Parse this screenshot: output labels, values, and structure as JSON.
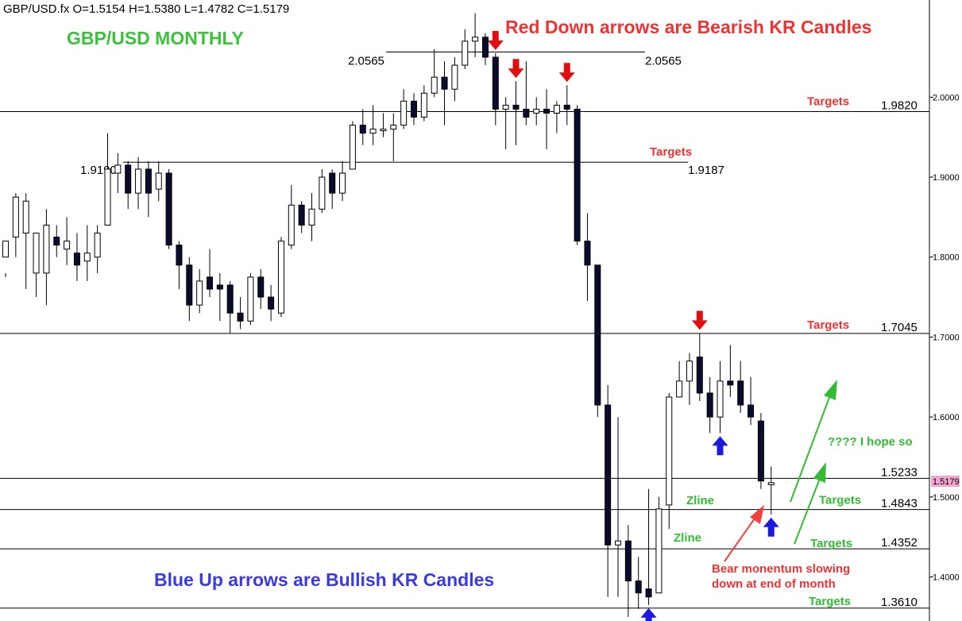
{
  "chart_data": {
    "type": "candlestick",
    "symbol_header": "GBP/USD.fx O=1.5154 H=1.5380 L=1.4782 C=1.5179",
    "title": "GBP/USD MONTHLY",
    "annotations": {
      "bearish_note": "Red Down arrows are Bearish KR Candles",
      "bullish_note": "Blue Up arrows are Bullish KR Candles",
      "hope_note": "???? I hope so",
      "momentum_line1": "Bear monentum slowing",
      "momentum_line2": "down at end of month",
      "zline_label": "Zline",
      "targets_label": "Targets"
    },
    "y_axis": {
      "range": [
        1.3449,
        2.1215
      ],
      "ticks": [
        "2.0000",
        "1.9000",
        "1.8000",
        "1.7000",
        "1.6000",
        "1.5000",
        "1.4000"
      ],
      "tick_values": [
        2.0,
        1.9,
        1.8,
        1.7,
        1.6,
        1.5,
        1.4
      ]
    },
    "current_price": "1.5179",
    "levels": [
      {
        "value": 1.982,
        "label": "1.9820",
        "note": "Targets",
        "note_color": "#ee3333"
      },
      {
        "value": 1.9187,
        "label": "1.9187",
        "note": "Targets",
        "note_color": "#ee3333"
      },
      {
        "value": 1.919,
        "label": "1.9190",
        "note": "",
        "note_color": ""
      },
      {
        "value": 2.0565,
        "label": "2.0565",
        "note": "",
        "note_color": ""
      },
      {
        "value": 1.7045,
        "label": "1.7045",
        "note": "Targets",
        "note_color": "#ee3333"
      },
      {
        "value": 1.5233,
        "label": "1.5233",
        "note": "",
        "note_color": ""
      },
      {
        "value": 1.4843,
        "label": "1.4843",
        "note": "Targets",
        "note_color": "#33bb33"
      },
      {
        "value": 1.4352,
        "label": "1.4352",
        "note": "Targets",
        "note_color": "#33bb33"
      },
      {
        "value": 1.361,
        "label": "1.3610",
        "note": "Targets",
        "note_color": "#33bb33"
      }
    ],
    "candles": [
      [
        1.8,
        1.82,
        1.78,
        1.775
      ],
      [
        1.825,
        1.875,
        1.88,
        1.8
      ],
      [
        1.83,
        1.87,
        1.88,
        1.76
      ],
      [
        1.78,
        1.83,
        1.83,
        1.75
      ],
      [
        1.78,
        1.84,
        1.86,
        1.74
      ],
      [
        1.825,
        1.815,
        1.84,
        1.8
      ],
      [
        1.81,
        1.82,
        1.85,
        1.79
      ],
      [
        1.805,
        1.79,
        1.83,
        1.77
      ],
      [
        1.795,
        1.805,
        1.84,
        1.77
      ],
      [
        1.8,
        1.83,
        1.84,
        1.78
      ],
      [
        1.84,
        1.91,
        1.955,
        1.84
      ],
      [
        1.905,
        1.915,
        1.93,
        1.88
      ],
      [
        1.915,
        1.88,
        1.92,
        1.86
      ],
      [
        1.88,
        1.91,
        1.925,
        1.86
      ],
      [
        1.91,
        1.88,
        1.92,
        1.85
      ],
      [
        1.885,
        1.905,
        1.92,
        1.87
      ],
      [
        1.905,
        1.815,
        1.91,
        1.81
      ],
      [
        1.815,
        1.79,
        1.82,
        1.76
      ],
      [
        1.79,
        1.74,
        1.8,
        1.72
      ],
      [
        1.74,
        1.77,
        1.785,
        1.73
      ],
      [
        1.775,
        1.76,
        1.81,
        1.75
      ],
      [
        1.765,
        1.76,
        1.78,
        1.72
      ],
      [
        1.765,
        1.73,
        1.77,
        1.705
      ],
      [
        1.73,
        1.72,
        1.75,
        1.71
      ],
      [
        1.72,
        1.775,
        1.78,
        1.715
      ],
      [
        1.775,
        1.75,
        1.785,
        1.735
      ],
      [
        1.75,
        1.735,
        1.765,
        1.72
      ],
      [
        1.73,
        1.82,
        1.825,
        1.725
      ],
      [
        1.815,
        1.865,
        1.89,
        1.81
      ],
      [
        1.865,
        1.84,
        1.87,
        1.83
      ],
      [
        1.84,
        1.86,
        1.88,
        1.82
      ],
      [
        1.86,
        1.9,
        1.91,
        1.855
      ],
      [
        1.905,
        1.88,
        1.91,
        1.86
      ],
      [
        1.88,
        1.905,
        1.92,
        1.87
      ],
      [
        1.91,
        1.965,
        1.97,
        1.91
      ],
      [
        1.965,
        1.955,
        1.985,
        1.94
      ],
      [
        1.955,
        1.96,
        1.99,
        1.94
      ],
      [
        1.96,
        1.96,
        1.98,
        1.95
      ],
      [
        1.96,
        1.965,
        1.98,
        1.92
      ],
      [
        1.965,
        1.995,
        2.01,
        1.96
      ],
      [
        1.995,
        1.975,
        2.005,
        1.965
      ],
      [
        1.975,
        2.005,
        2.015,
        1.97
      ],
      [
        2.005,
        2.025,
        2.06,
        2.0
      ],
      [
        2.025,
        2.01,
        2.045,
        1.965
      ],
      [
        2.01,
        2.04,
        2.05,
        1.995
      ],
      [
        2.04,
        2.07,
        2.085,
        2.035
      ],
      [
        2.07,
        2.075,
        2.105,
        2.05
      ],
      [
        2.075,
        2.05,
        2.08,
        2.04
      ],
      [
        2.05,
        1.985,
        2.055,
        1.965
      ],
      [
        1.985,
        1.99,
        2.0,
        1.935
      ],
      [
        1.99,
        1.985,
        2.02,
        1.94
      ],
      [
        1.985,
        1.975,
        2.045,
        1.965
      ],
      [
        1.98,
        1.985,
        2.0,
        1.965
      ],
      [
        1.985,
        1.98,
        2.01,
        1.935
      ],
      [
        1.98,
        1.99,
        1.995,
        1.955
      ],
      [
        1.99,
        1.985,
        2.015,
        1.965
      ],
      [
        1.985,
        1.82,
        1.99,
        1.815
      ],
      [
        1.82,
        1.79,
        1.855,
        1.745
      ],
      [
        1.79,
        1.615,
        1.79,
        1.6
      ],
      [
        1.615,
        1.44,
        1.64,
        1.375
      ],
      [
        1.44,
        1.445,
        1.6,
        1.375
      ],
      [
        1.445,
        1.395,
        1.465,
        1.35
      ],
      [
        1.395,
        1.38,
        1.425,
        1.36
      ],
      [
        1.385,
        1.375,
        1.51,
        1.365
      ],
      [
        1.38,
        1.485,
        1.5,
        1.38
      ],
      [
        1.49,
        1.625,
        1.63,
        1.46
      ],
      [
        1.625,
        1.645,
        1.67,
        1.625
      ],
      [
        1.645,
        1.67,
        1.68,
        1.615
      ],
      [
        1.675,
        1.63,
        1.705,
        1.62
      ],
      [
        1.63,
        1.6,
        1.65,
        1.58
      ],
      [
        1.6,
        1.645,
        1.67,
        1.58
      ],
      [
        1.645,
        1.64,
        1.69,
        1.625
      ],
      [
        1.645,
        1.615,
        1.67,
        1.605
      ],
      [
        1.615,
        1.6,
        1.65,
        1.59
      ],
      [
        1.595,
        1.52,
        1.605,
        1.51
      ],
      [
        1.5154,
        1.5179,
        1.538,
        1.4782
      ]
    ],
    "bearish_kr_candle_index": [
      48,
      50,
      55,
      68
    ],
    "bullish_kr_candle_index": [
      63,
      70,
      75
    ]
  },
  "colors": {
    "bear_arrow": "#e01010",
    "bull_arrow": "#1a1ae0",
    "title_green": "#3ac23a",
    "bear_text": "#ee3333",
    "bull_text": "#3a3ae0",
    "hope_green": "#33bb33",
    "candle_down": "#0b0b2e",
    "pink_tag": "#f2a6cf"
  }
}
